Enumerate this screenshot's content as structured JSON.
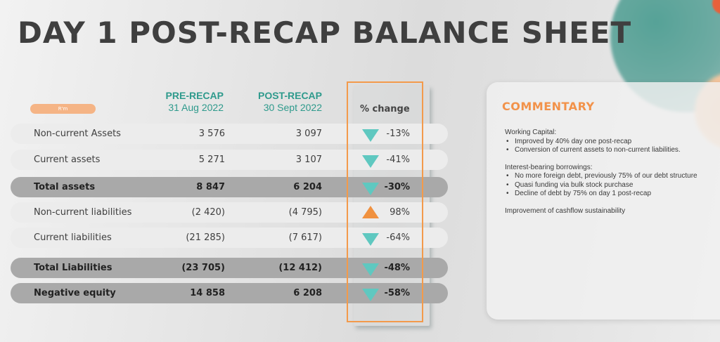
{
  "title": "DAY 1 POST-RECAP BALANCE SHEET",
  "unit_label": "R'm",
  "columns": {
    "pre": {
      "heading": "PRE-RECAP",
      "date": "31 Aug 2022"
    },
    "post": {
      "heading": "POST-RECAP",
      "date": "30 Sept 2022"
    },
    "change": {
      "heading": "% change"
    }
  },
  "colors": {
    "accent_teal": "#2e9a8c",
    "accent_orange": "#f39a4b",
    "down_arrow": "#5fc8c0",
    "up_arrow": "#f0913f",
    "total_row": "#a9a9a9"
  },
  "rows": [
    {
      "label": "Non-current Assets",
      "pre": "3 576",
      "post": "3 097",
      "direction": "down",
      "change": "-13%",
      "total": false
    },
    {
      "label": "Current assets",
      "pre": "5 271",
      "post": "3 107",
      "direction": "down",
      "change": "-41%",
      "total": false
    },
    {
      "label": "Total assets",
      "pre": "8 847",
      "post": "6 204",
      "direction": "down",
      "change": "-30%",
      "total": true
    },
    {
      "label": "Non-current liabilities",
      "pre": "(2 420)",
      "post": "(4 795)",
      "direction": "up",
      "change": "98%",
      "total": false
    },
    {
      "label": "Current liabilities",
      "pre": "(21 285)",
      "post": "(7 617)",
      "direction": "down",
      "change": "-64%",
      "total": false
    },
    {
      "label": "Total Liabilities",
      "pre": "(23 705)",
      "post": "(12 412)",
      "direction": "down",
      "change": "-48%",
      "total": true
    },
    {
      "label": "Negative equity",
      "pre": "14 858",
      "post": "6 208",
      "direction": "down",
      "change": "-58%",
      "total": true
    }
  ],
  "commentary": {
    "title": "COMMENTARY",
    "sections": [
      {
        "heading": "Working Capital:",
        "bullets": [
          "Improved by 40% day one post-recap",
          "Conversion of current assets to non-current liabilities."
        ]
      },
      {
        "heading": "Interest-bearing borrowings:",
        "bullets": [
          "No more foreign debt, previously 75% of our debt structure",
          "Quasi funding via bulk stock purchase",
          "Decline of debt by 75% on day 1 post-recap"
        ]
      },
      {
        "heading": "Improvement of cashflow sustainability",
        "bullets": []
      }
    ]
  }
}
